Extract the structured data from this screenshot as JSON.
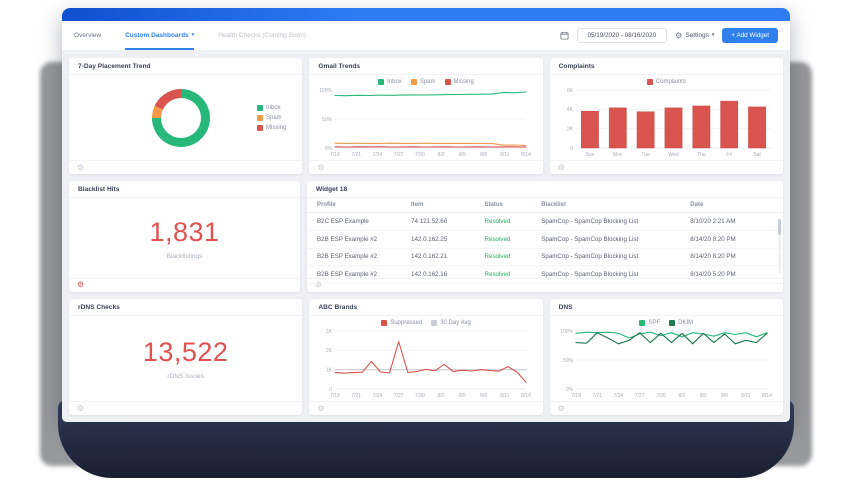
{
  "nav": {
    "tabs": [
      {
        "label": "Overview"
      },
      {
        "label": "Custom Dashboards"
      },
      {
        "label": "Health Checks (Coming Soon)"
      }
    ],
    "date_range": "05/19/2020 - 08/16/2020",
    "settings_label": "Settings",
    "add_widget_label": "+ Add Widget"
  },
  "colors": {
    "accent_blue": "#2f80ed",
    "green": "#27b87a",
    "dark_green": "#1a7a4e",
    "orange": "#f2994a",
    "red": "#d9534f",
    "big_number_red": "#e05252",
    "status_green": "#27ae60"
  },
  "widgets": [
    {
      "title": "7-Day Placement Trend",
      "chart": {
        "type": "donut",
        "values": [
          75,
          7,
          18
        ],
        "legend": [
          {
            "label": "Inbox",
            "color": "#27b87a"
          },
          {
            "label": "Spam",
            "color": "#f2994a"
          },
          {
            "label": "Missing",
            "color": "#d9534f"
          }
        ]
      }
    },
    {
      "title": "Gmail Trends",
      "chart": {
        "type": "line",
        "range": [
          0,
          100
        ],
        "ylabels": [
          "100%",
          "50%",
          "0%"
        ],
        "xlabels": [
          "7/18",
          "7/21",
          "7/24",
          "7/27",
          "7/30",
          "8/2",
          "8/5",
          "8/8",
          "8/11",
          "8/14"
        ],
        "legend": [
          {
            "label": "Inbox",
            "color": "#27b87a"
          },
          {
            "label": "Spam",
            "color": "#f2994a"
          },
          {
            "label": "Missing",
            "color": "#d9534f"
          }
        ],
        "series": [
          {
            "name": "Inbox",
            "color": "#27b87a",
            "values": [
              90.5,
              90.2,
              90.8,
              90.5,
              91,
              90.8,
              91.2,
              91.5,
              91.3,
              91.8,
              92,
              92.2,
              92.5,
              92.8,
              93,
              95.8,
              95.2,
              96.5
            ]
          },
          {
            "name": "Spam",
            "color": "#f2994a",
            "values": [
              8.2,
              8,
              8.1,
              8,
              8,
              8.2,
              8,
              8,
              8.1,
              8,
              8,
              8,
              8,
              7.8,
              7.6,
              4.8,
              5.2,
              4.2
            ]
          },
          {
            "name": "Missing",
            "color": "#d9534f",
            "values": [
              2,
              1.8,
              2,
              1.9,
              2,
              1.8,
              1.9,
              2,
              1.8,
              1.9,
              2,
              1.8,
              1.9,
              2,
              1.8,
              1.9,
              2,
              1.8
            ]
          }
        ]
      }
    },
    {
      "title": "Complaints",
      "chart": {
        "type": "bar",
        "range": [
          0,
          6
        ],
        "ylabels": [
          "6K",
          "4K",
          "2K",
          "0"
        ],
        "xlabels": [
          "Sun",
          "Mon",
          "Tue",
          "Wed",
          "Thu",
          "Fri",
          "Sat"
        ],
        "legend": [
          {
            "label": "Complaints",
            "color": "#d9534f"
          }
        ],
        "series": [
          {
            "name": "Complaints",
            "color": "#d9534f",
            "values": [
              3.8,
              4.15,
              3.75,
              4.15,
              4.35,
              4.85,
              4.25
            ]
          }
        ]
      }
    },
    {
      "title": "Blacklist Hits",
      "value": "1,831",
      "caption": "Blacklistings"
    },
    {
      "title": "Widget 18",
      "table": {
        "columns": [
          "Profile",
          "Item",
          "Status",
          "Blacklist",
          "Date"
        ],
        "status_col": 2,
        "rows": [
          [
            "B2C ESP Example",
            "74.121.52.60",
            "Resolved",
            "SpamCop - SpamCop Blocking List",
            "8/10/20 2:21 AM"
          ],
          [
            "B2B ESP Example #2",
            "142.0.162.25",
            "Resolved",
            "SpamCop - SpamCop Blocking List",
            "8/14/20 8:20 PM"
          ],
          [
            "B2B ESP Example #2",
            "142.0.162.21",
            "Resolved",
            "SpamCop - SpamCop Blocking List",
            "8/14/20 8:20 PM"
          ],
          [
            "B2B ESP Example #2",
            "142.0.162.16",
            "Resolved",
            "SpamCop - SpamCop Blocking List",
            "8/14/20 5:20 PM"
          ]
        ]
      }
    },
    {
      "title": "rDNS Checks",
      "value": "13,522",
      "caption": "rDNS Issues"
    },
    {
      "title": "ABC Brands",
      "chart": {
        "type": "line",
        "range": [
          0,
          3
        ],
        "ylabels": [
          "3K",
          "2K",
          "1K",
          "0"
        ],
        "xlabels": [
          "7/18",
          "7/21",
          "7/24",
          "7/27",
          "7/30",
          "8/2",
          "8/5",
          "8/8",
          "8/11",
          "8/14"
        ],
        "legend": [
          {
            "label": "Suppressed",
            "color": "#d9534f"
          },
          {
            "label": "30 Day Avg",
            "color": "#c9cdd4"
          }
        ],
        "series": [
          {
            "name": "30 Day Avg",
            "color": "#c9cdd4",
            "values": [
              1.0,
              1.0
            ]
          },
          {
            "name": "Suppressed",
            "color": "#d9534f",
            "values": [
              0.85,
              0.82,
              0.85,
              0.87,
              1.42,
              0.88,
              0.84,
              2.45,
              0.86,
              0.9,
              1.02,
              0.94,
              1.28,
              0.9,
              0.97,
              0.93,
              1.0,
              0.96,
              0.92,
              1.16,
              0.88,
              0.35
            ]
          }
        ]
      }
    },
    {
      "title": "DNS",
      "chart": {
        "type": "line",
        "range": [
          0,
          100
        ],
        "ylabels": [
          "100%",
          "50%",
          "0%"
        ],
        "xlabels": [
          "7/18",
          "7/21",
          "7/24",
          "7/27",
          "7/30",
          "8/2",
          "8/5",
          "8/8",
          "8/11",
          "8/14"
        ],
        "legend": [
          {
            "label": "SPF",
            "color": "#27b87a"
          },
          {
            "label": "DKIM",
            "color": "#1a7a4e"
          }
        ],
        "series": [
          {
            "name": "SPF",
            "color": "#27b87a",
            "values": [
              96,
              98,
              97,
              98,
              96,
              88,
              95,
              98,
              92,
              97,
              90,
              97,
              95,
              91,
              97,
              94,
              97,
              90,
              97
            ]
          },
          {
            "name": "DKIM",
            "color": "#1a7a4e",
            "values": [
              80,
              79,
              97,
              88,
              78,
              84,
              97,
              80,
              96,
              80,
              96,
              78,
              96,
              80,
              95,
              78,
              84,
              80,
              96
            ]
          }
        ]
      }
    }
  ]
}
